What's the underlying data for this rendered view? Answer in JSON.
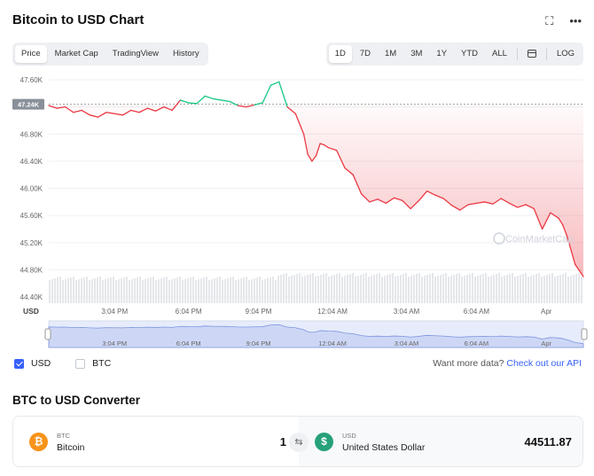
{
  "header": {
    "title": "Bitcoin to USD Chart",
    "fullscreen_icon": "fullscreen-icon",
    "more_icon": "more-horizontal-icon"
  },
  "chart_tabs": [
    {
      "label": "Price",
      "active": true
    },
    {
      "label": "Market Cap",
      "active": false
    },
    {
      "label": "TradingView",
      "active": false
    },
    {
      "label": "History",
      "active": false
    }
  ],
  "range_tabs": [
    {
      "label": "1D",
      "active": true
    },
    {
      "label": "7D",
      "active": false
    },
    {
      "label": "1M",
      "active": false
    },
    {
      "label": "3M",
      "active": false
    },
    {
      "label": "1Y",
      "active": false
    },
    {
      "label": "YTD",
      "active": false
    },
    {
      "label": "ALL",
      "active": false
    }
  ],
  "calendar_icon": "calendar-icon",
  "log_label": "LOG",
  "chart_data": {
    "type": "line",
    "y_ticks": [
      "47.60K",
      "47.20K",
      "46.80K",
      "46.40K",
      "46.00K",
      "45.60K",
      "45.20K",
      "44.80K",
      "44.40K"
    ],
    "y_tick_values": [
      47600,
      47200,
      46800,
      46400,
      46000,
      45600,
      45200,
      44800,
      44400
    ],
    "ylim": [
      44400,
      47600
    ],
    "current_price_label": "47.24K",
    "reference_price": 47240,
    "x_ticks": [
      "3:04 PM",
      "6:04 PM",
      "9:04 PM",
      "12:04 AM",
      "3:04 AM",
      "6:04 AM",
      "Apr"
    ],
    "x_tick_positions": [
      0.16,
      0.34,
      0.51,
      0.69,
      0.87,
      1.04,
      1.21
    ],
    "xlim": [
      0,
      1.3
    ],
    "currency_label": "USD",
    "watermark": "CoinMarketCap",
    "series": [
      {
        "name": "USD",
        "x": [
          0,
          0.02,
          0.04,
          0.06,
          0.08,
          0.1,
          0.12,
          0.14,
          0.16,
          0.18,
          0.2,
          0.22,
          0.24,
          0.26,
          0.28,
          0.3,
          0.32,
          0.34,
          0.36,
          0.38,
          0.4,
          0.42,
          0.44,
          0.46,
          0.48,
          0.5,
          0.52,
          0.54,
          0.56,
          0.58,
          0.6,
          0.62,
          0.63,
          0.64,
          0.65,
          0.66,
          0.67,
          0.68,
          0.7,
          0.72,
          0.74,
          0.76,
          0.78,
          0.8,
          0.82,
          0.84,
          0.86,
          0.88,
          0.9,
          0.92,
          0.94,
          0.96,
          0.98,
          1.0,
          1.02,
          1.04,
          1.06,
          1.08,
          1.1,
          1.12,
          1.14,
          1.16,
          1.18,
          1.2,
          1.22,
          1.23,
          1.24,
          1.25,
          1.26,
          1.28,
          1.3
        ],
        "values": [
          47220,
          47180,
          47200,
          47120,
          47150,
          47080,
          47050,
          47120,
          47100,
          47080,
          47150,
          47120,
          47180,
          47140,
          47200,
          47150,
          47300,
          47260,
          47250,
          47360,
          47320,
          47300,
          47280,
          47220,
          47200,
          47230,
          47260,
          47520,
          47570,
          47200,
          47100,
          46800,
          46500,
          46400,
          46480,
          46660,
          46640,
          46600,
          46560,
          46300,
          46200,
          45920,
          45800,
          45840,
          45780,
          45860,
          45820,
          45700,
          45820,
          45960,
          45900,
          45850,
          45750,
          45680,
          45760,
          45780,
          45800,
          45770,
          45850,
          45780,
          45720,
          45760,
          45700,
          45400,
          45640,
          45600,
          45560,
          45460,
          45300,
          44880,
          44700
        ]
      }
    ]
  },
  "legend": {
    "usd_label": "USD",
    "btc_label": "BTC",
    "api_text": "Want more data?",
    "api_link": "Check out our API"
  },
  "converter": {
    "title": "BTC to USD Converter",
    "from_ticker": "BTC",
    "from_name": "Bitcoin",
    "from_amount": "1",
    "to_ticker": "USD",
    "to_name": "United States Dollar",
    "to_amount": "44511.87",
    "btc_color": "#f7931a",
    "usd_color": "#26a17b",
    "swap_icon": "swap-icon"
  },
  "colors": {
    "accent": "#3861fb",
    "up": "#16c784",
    "down": "#ea3943"
  }
}
